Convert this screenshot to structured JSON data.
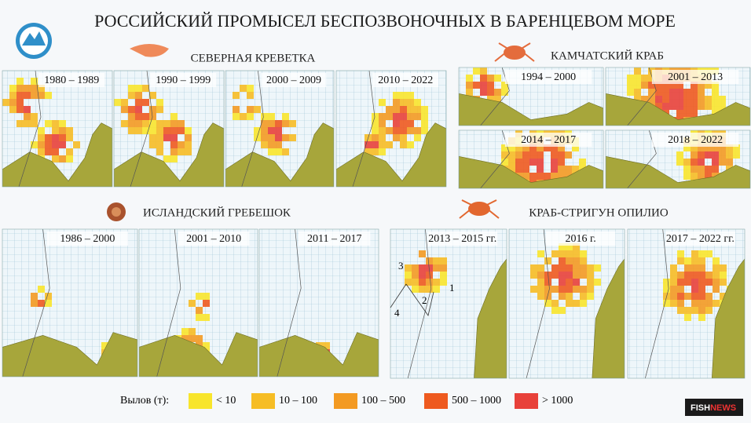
{
  "title": "РОССИЙСКИЙ ПРОМЫСЕЛ БЕСПОЗВОНОЧНЫХ В БАРЕНЦЕВОМ МОРЕ",
  "sections": [
    {
      "title": "СЕВЕРНАЯ КРЕВЕТКА",
      "panels": [
        "1980 – 1989",
        "1990 – 1999",
        "2000 – 2009",
        "2010 – 2022"
      ]
    },
    {
      "title": "КАМЧАТСКИЙ КРАБ",
      "panels": [
        "1994 – 2000",
        "2001 – 2013",
        "2014 – 2017",
        "2018 – 2022"
      ]
    },
    {
      "title": "ИСЛАНДСКИЙ ГРЕБЕШОК",
      "panels": [
        "1986 – 2000",
        "2001 – 2010",
        "2011 – 2017"
      ]
    },
    {
      "title": "КРАБ-СТРИГУН ОПИЛИО",
      "panels": [
        "2013 – 2015 гг.",
        "2016 г.",
        "2017 – 2022 гг."
      ],
      "zones": [
        "1",
        "2",
        "3",
        "4"
      ]
    }
  ],
  "legend": {
    "title": "Вылов (т):",
    "items": [
      {
        "label": "< 10",
        "color": "#f8e52c"
      },
      {
        "label": "10 – 100",
        "color": "#f6bd25"
      },
      {
        "label": "100 – 500",
        "color": "#f39a22"
      },
      {
        "label": "500 – 1000",
        "color": "#ee5a1f"
      },
      {
        "label": "> 1000",
        "color": "#e8413a"
      }
    ]
  },
  "brand": [
    "FISH",
    "NEWS"
  ]
}
